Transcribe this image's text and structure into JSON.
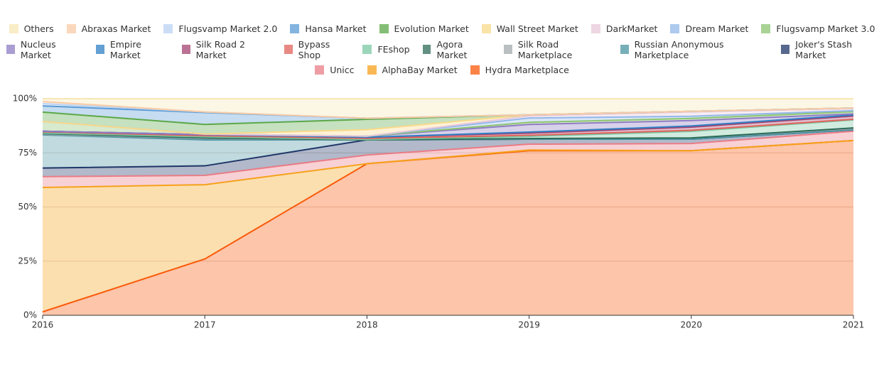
{
  "chart_data": {
    "type": "area",
    "stacked": true,
    "x": [
      2016,
      2017,
      2018,
      2019,
      2020,
      2021
    ],
    "xlim": [
      2016,
      2021
    ],
    "xticks": [
      2016,
      2017,
      2018,
      2019,
      2020,
      2021
    ],
    "ylim": [
      0,
      100
    ],
    "yticks": [
      {
        "value": 0,
        "label": "0%"
      },
      {
        "value": 25,
        "label": "25%"
      },
      {
        "value": 50,
        "label": "50%"
      },
      {
        "value": 75,
        "label": "75%"
      },
      {
        "value": 100,
        "label": "100%"
      }
    ],
    "grid": true,
    "series": [
      {
        "name": "Others",
        "color": "#f7e7b4",
        "values": [
          1.3,
          6.1,
          9,
          7.4,
          5.8,
          4.3
        ]
      },
      {
        "name": "Abraxas Market",
        "color": "#f9cba6",
        "values": [
          1,
          0,
          0,
          0,
          0,
          0
        ]
      },
      {
        "name": "Flugsvamp Market 2.0",
        "color": "#b9d3f3",
        "values": [
          1,
          0.3,
          0,
          0,
          0,
          0
        ]
      },
      {
        "name": "Hansa Market",
        "color": "#5b9bd5",
        "values": [
          2.9,
          5.5,
          0.5,
          0,
          0,
          0
        ]
      },
      {
        "name": "Evolution Market",
        "color": "#5ba848",
        "values": [
          4.3,
          4.4,
          4.8,
          0,
          0,
          0
        ]
      },
      {
        "name": "Wall Street Market",
        "color": "#f8d98a",
        "values": [
          0,
          0,
          3,
          0.5,
          0.3,
          0.2
        ]
      },
      {
        "name": "DarkMarket",
        "color": "#e8c8d8",
        "values": [
          0,
          0,
          0,
          1,
          2,
          1
        ]
      },
      {
        "name": "Dream Market",
        "color": "#93b8ea",
        "values": [
          0,
          0,
          0,
          2,
          1,
          0.5
        ]
      },
      {
        "name": "Flugsvamp Market 3.0",
        "color": "#8cc471",
        "values": [
          4.5,
          0.3,
          0,
          1,
          1,
          1
        ]
      },
      {
        "name": "Nucleus Market",
        "color": "#8e7cc3",
        "values": [
          0,
          0,
          0.5,
          3.5,
          2.5,
          0.5
        ]
      },
      {
        "name": "Empire Market",
        "color": "#2f7fc4",
        "values": [
          0,
          0,
          0,
          0.5,
          0.5,
          0.5
        ]
      },
      {
        "name": "Silk Road 2 Market",
        "color": "#a3426f",
        "values": [
          0.3,
          0.5,
          0.5,
          1,
          1.5,
          1.5
        ]
      },
      {
        "name": "Bypass Shop",
        "color": "#e0625a",
        "values": [
          0.5,
          0.5,
          0.5,
          0.5,
          0.5,
          0.3
        ]
      },
      {
        "name": "FEshop",
        "color": "#7ac8a4",
        "values": [
          0.3,
          0.5,
          0.2,
          1,
          3,
          3.7
        ]
      },
      {
        "name": "Agora Market",
        "color": "#2c6b58",
        "values": [
          0.3,
          0.3,
          0,
          0,
          0,
          0.3
        ]
      },
      {
        "name": "Silk Road Marketplace",
        "color": "#a3a9ae",
        "values": [
          0.3,
          0.6,
          0,
          0.3,
          0.6,
          0.6
        ]
      },
      {
        "name": "Russian Anonymous Marketplace",
        "color": "#4a94a2",
        "values": [
          15.3,
          12,
          0,
          0,
          0,
          0
        ]
      },
      {
        "name": "Joker's Stash Market",
        "color": "#1f3668",
        "values": [
          4,
          4.4,
          7,
          2.3,
          2,
          0.6
        ]
      },
      {
        "name": "Unicc",
        "color": "#ea7c86",
        "values": [
          5,
          4.3,
          4,
          2.7,
          3.3,
          4.3
        ]
      },
      {
        "name": "AlphaBay Market",
        "color": "#f5a21b",
        "values": [
          57.4,
          34.3,
          0,
          0.3,
          0,
          0
        ]
      },
      {
        "name": "Hydra Marketplace",
        "color": "#fa5a0a",
        "values": [
          1.6,
          26,
          70,
          76,
          76,
          80.7
        ]
      }
    ]
  }
}
